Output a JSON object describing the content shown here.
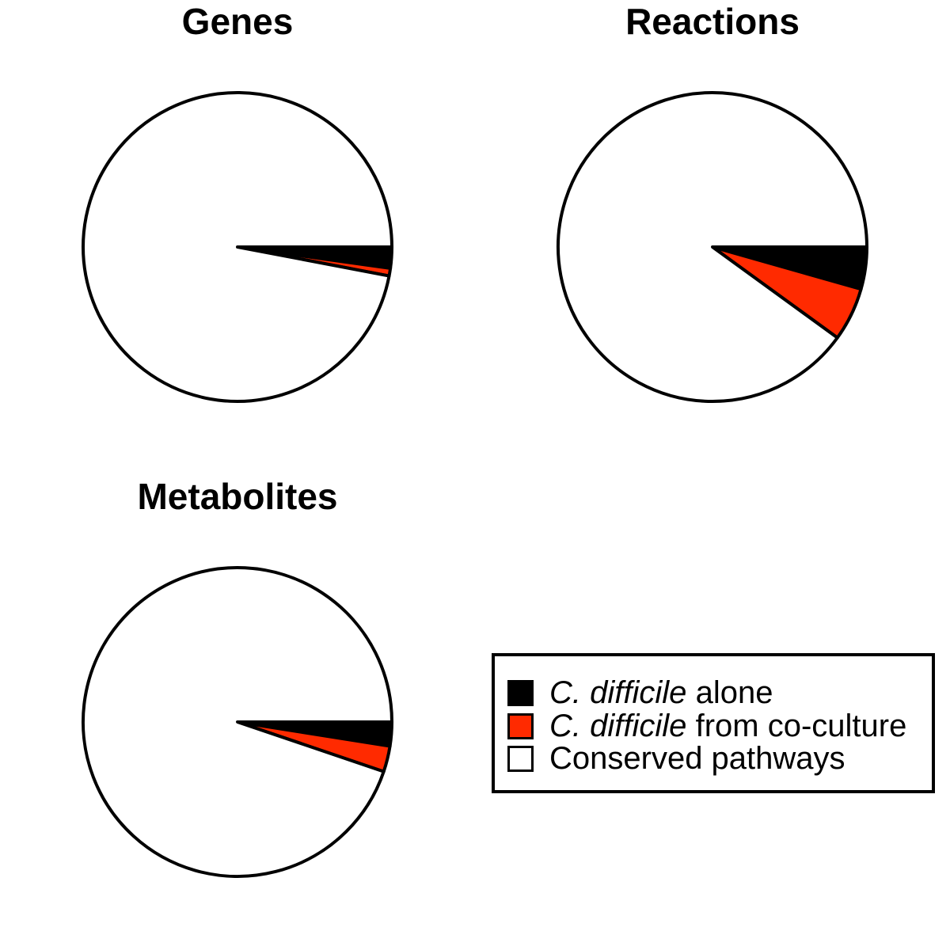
{
  "colors": {
    "alone": "#000000",
    "coculture": "#ff2a00",
    "conserved": "#ffffff",
    "outline": "#000000"
  },
  "legend": {
    "placement": "bottom-right",
    "items": [
      {
        "italic": "C. difficile",
        "label": "alone",
        "color": "#000000"
      },
      {
        "italic": "C. difficile",
        "label": "from co-culture",
        "color": "#ff2a00"
      },
      {
        "italic": "",
        "label": "Conserved pathways",
        "color": "#ffffff"
      }
    ]
  },
  "chart_data": [
    {
      "type": "pie",
      "title": "Genes",
      "categories": [
        "C. difficile alone",
        "C. difficile from co-culture",
        "Conserved pathways"
      ],
      "values": [
        2.2,
        0.8,
        97.0
      ],
      "unit": "percent",
      "start_angle": "3 o'clock",
      "direction": "clockwise"
    },
    {
      "type": "pie",
      "title": "Reactions",
      "categories": [
        "C. difficile alone",
        "C. difficile from co-culture",
        "Conserved pathways"
      ],
      "values": [
        4.4,
        5.6,
        90.0
      ],
      "unit": "percent",
      "start_angle": "3 o'clock",
      "direction": "clockwise"
    },
    {
      "type": "pie",
      "title": "Metabolites",
      "categories": [
        "C. difficile alone",
        "C. difficile from co-culture",
        "Conserved pathways"
      ],
      "values": [
        2.5,
        2.7,
        94.8
      ],
      "unit": "percent",
      "start_angle": "3 o'clock",
      "direction": "clockwise"
    }
  ]
}
